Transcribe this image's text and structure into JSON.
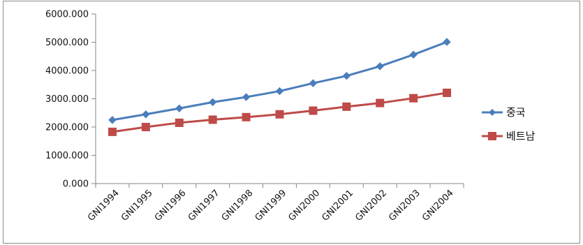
{
  "chart_data": {
    "type": "line",
    "categories": [
      "GNI1994",
      "GNI1995",
      "GNI1996",
      "GNI1997",
      "GNI1998",
      "GNI1999",
      "GNI2000",
      "GNI2001",
      "GNI2002",
      "GNI2003",
      "GNI2004"
    ],
    "series": [
      {
        "name": "중국",
        "color": "#4a7ebb",
        "marker": "diamond",
        "values": [
          2250,
          2450,
          2660,
          2880,
          3060,
          3270,
          3550,
          3810,
          4150,
          4560,
          5010
        ]
      },
      {
        "name": "베트남",
        "color": "#be4b48",
        "marker": "square",
        "values": [
          1830,
          2000,
          2150,
          2260,
          2350,
          2450,
          2580,
          2720,
          2850,
          3020,
          3210
        ]
      }
    ],
    "yticks": [
      "0.000",
      "1000.000",
      "2000.000",
      "3000.000",
      "4000.000",
      "5000.000",
      "6000.000"
    ],
    "ylim": [
      0,
      6000
    ],
    "title": "",
    "xlabel": "",
    "ylabel": "",
    "grid": false,
    "legend": "right"
  }
}
